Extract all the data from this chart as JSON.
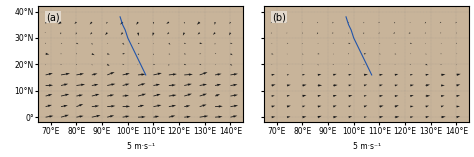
{
  "fig_width": 4.74,
  "fig_height": 1.57,
  "dpi": 100,
  "panels": [
    "(a)",
    "(b)"
  ],
  "lon_range": [
    65,
    145
  ],
  "lat_range": [
    -2,
    42
  ],
  "lon_ticks": [
    70,
    80,
    90,
    100,
    110,
    120,
    130,
    140
  ],
  "lat_ticks": [
    0,
    10,
    20,
    30,
    40
  ],
  "lon_labels": [
    "70°E",
    "80°E",
    "90°E",
    "100°E",
    "110°E",
    "120°E",
    "130°E",
    "140°E"
  ],
  "lat_labels": [
    "0°",
    "10°N",
    "20°N",
    "30°N",
    "40°N"
  ],
  "background_color_ocean": "#a8c8e8",
  "background_color_land": "#c8b89a",
  "panel_label_fontsize": 7,
  "tick_fontsize": 5.5,
  "quiver_scale_label": "5 m·s⁻¹",
  "quiver_color": "#1a1a1a",
  "blue_line_color": "#2255aa"
}
